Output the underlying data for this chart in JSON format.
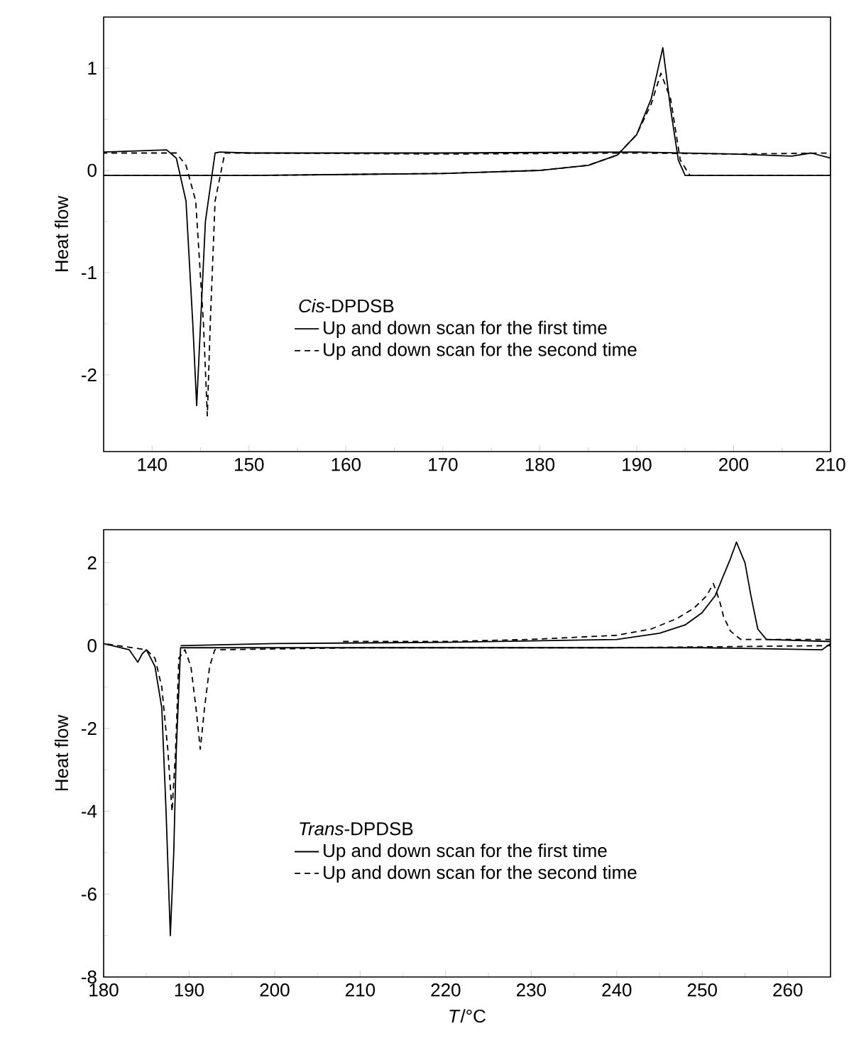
{
  "chart_data": [
    {
      "type": "line",
      "ylabel": "Heat flow",
      "legend_title": "*Cis*-DPDSB",
      "legend": "bottom",
      "xlim": [
        135,
        210
      ],
      "ylim": [
        -2.75,
        1.5
      ],
      "xticks": [
        140,
        150,
        160,
        170,
        180,
        190,
        200,
        210
      ],
      "yticks": [
        -2,
        -1,
        0,
        1
      ],
      "series": [
        {
          "name": "Up and down scan for the first time",
          "color": "#000000",
          "line_style": "solid",
          "x": [
            135,
            150,
            170,
            180,
            185,
            188,
            190,
            191.5,
            192.7,
            193.5,
            194.3,
            195,
            210,
            210,
            208,
            206,
            200,
            190,
            170,
            150,
            147,
            146.5,
            145.5,
            145,
            144.6,
            144.2,
            143.5,
            142.5,
            141.5,
            135
          ],
          "values": [
            -0.05,
            -0.05,
            -0.03,
            0.0,
            0.05,
            0.15,
            0.35,
            0.7,
            1.2,
            0.6,
            0.1,
            -0.05,
            -0.05,
            0.12,
            0.17,
            0.14,
            0.16,
            0.18,
            0.17,
            0.17,
            0.18,
            0.17,
            -0.5,
            -1.5,
            -2.3,
            -1.5,
            -0.3,
            0.12,
            0.2,
            0.18
          ]
        },
        {
          "name": "Up and down scan for the second time",
          "color": "#000000",
          "line_style": "dashed",
          "x": [
            135,
            150,
            170,
            180,
            185,
            188,
            190,
            191.5,
            192.5,
            193.5,
            194.5,
            195.5,
            210,
            210,
            200,
            190,
            170,
            150,
            147.5,
            146.5,
            146,
            145.7,
            145.3,
            144.5,
            143.5,
            142.5,
            135
          ],
          "values": [
            -0.05,
            -0.05,
            -0.03,
            0.0,
            0.05,
            0.15,
            0.35,
            0.65,
            0.95,
            0.7,
            0.1,
            -0.05,
            -0.05,
            0.17,
            0.16,
            0.17,
            0.16,
            0.17,
            0.17,
            -0.3,
            -1.5,
            -2.4,
            -1.5,
            -0.3,
            0.05,
            0.17,
            0.17
          ]
        }
      ]
    },
    {
      "type": "line",
      "ylabel": "Heat flow",
      "xlabel": "*T*/°C",
      "legend_title": "*Trans*-DPDSB",
      "legend": "bottom",
      "xlim": [
        180,
        265
      ],
      "ylim": [
        -8,
        2.8
      ],
      "xticks": [
        180,
        190,
        200,
        210,
        220,
        230,
        240,
        250,
        260
      ],
      "yticks": [
        -8,
        -6,
        -4,
        -2,
        0,
        2
      ],
      "series": [
        {
          "name": "Up and down scan for the first time",
          "color": "#000000",
          "line_style": "solid",
          "x": [
            189,
            200,
            220,
            240,
            245,
            248,
            250,
            251.5,
            252.5,
            253.3,
            254,
            255,
            255.7,
            256.5,
            257.5,
            265,
            265,
            264,
            250,
            189,
            188.5,
            188.2,
            187.8,
            187.3,
            186.8,
            186,
            185,
            184.5,
            184,
            183,
            180
          ],
          "values": [
            0.0,
            0.05,
            0.08,
            0.15,
            0.3,
            0.5,
            0.8,
            1.2,
            1.7,
            2.1,
            2.5,
            2.0,
            1.2,
            0.4,
            0.15,
            0.1,
            0.05,
            -0.1,
            -0.05,
            -0.05,
            -2.5,
            -5.0,
            -7.0,
            -4.0,
            -1.5,
            -0.5,
            -0.1,
            -0.2,
            -0.4,
            -0.1,
            0.05
          ]
        },
        {
          "name": "Up and down scan for the second time",
          "color": "#000000",
          "line_style": "dashed",
          "x": [
            208,
            220,
            230,
            240,
            244,
            247,
            249,
            250.5,
            251.3,
            252,
            252.5,
            253.3,
            254.5,
            257,
            265,
            265,
            240,
            210,
            193,
            192.4,
            191.8,
            191.3,
            190.8,
            190.2,
            189.5,
            188.8,
            188.4,
            188,
            187.5,
            186.8,
            186,
            185,
            180
          ],
          "values": [
            0.1,
            0.1,
            0.15,
            0.25,
            0.4,
            0.65,
            0.9,
            1.2,
            1.5,
            1.1,
            0.7,
            0.35,
            0.15,
            0.15,
            0.15,
            0.0,
            -0.05,
            -0.05,
            -0.1,
            -0.5,
            -1.5,
            -2.5,
            -1.5,
            -0.5,
            -0.1,
            -0.3,
            -2.6,
            -4.0,
            -2.5,
            -1.0,
            -0.3,
            -0.1,
            0.05
          ]
        }
      ]
    }
  ]
}
